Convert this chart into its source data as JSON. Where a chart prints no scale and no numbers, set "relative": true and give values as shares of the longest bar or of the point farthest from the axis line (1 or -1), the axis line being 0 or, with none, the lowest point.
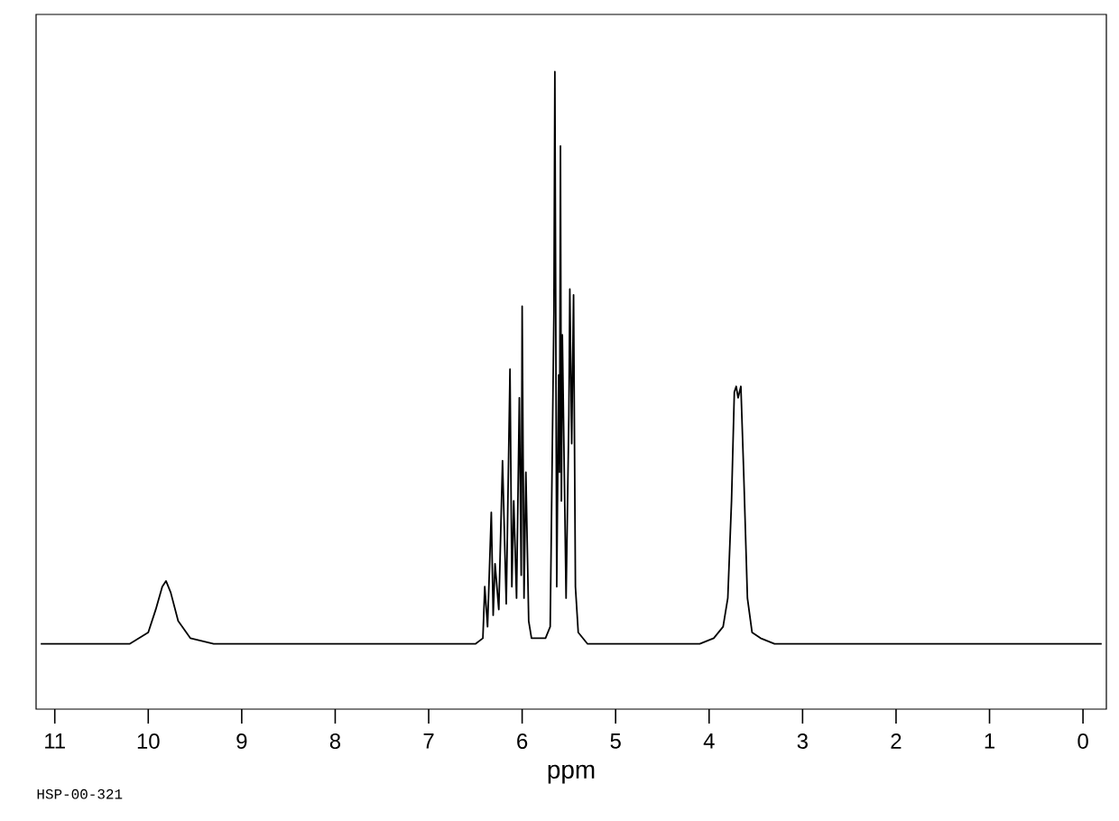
{
  "chart_data": {
    "type": "line",
    "relative": true,
    "xlabel": "ppm",
    "annotations": [
      "HSP-00-321"
    ],
    "tick_labels": "x",
    "xlim": [
      11.2,
      -0.25
    ],
    "xticks": [
      11,
      10,
      9,
      8,
      7,
      6,
      5,
      4,
      3,
      2,
      1,
      0
    ],
    "x": [
      11.15,
      10.2,
      10.0,
      9.92,
      9.85,
      9.81,
      9.76,
      9.68,
      9.55,
      9.3,
      6.5,
      6.42,
      6.4,
      6.37,
      6.33,
      6.31,
      6.29,
      6.25,
      6.21,
      6.17,
      6.13,
      6.11,
      6.09,
      6.06,
      6.03,
      6.01,
      6.0,
      5.98,
      5.96,
      5.93,
      5.9,
      5.75,
      5.7,
      5.66,
      5.65,
      5.63,
      5.61,
      5.6,
      5.59,
      5.58,
      5.57,
      5.53,
      5.5,
      5.49,
      5.47,
      5.45,
      5.43,
      5.4,
      5.3,
      4.1,
      3.95,
      3.85,
      3.8,
      3.76,
      3.73,
      3.71,
      3.69,
      3.66,
      3.63,
      3.59,
      3.54,
      3.45,
      3.3,
      -0.2
    ],
    "series": [
      {
        "color": "#000000",
        "values": [
          0,
          0,
          0.02,
          0.06,
          0.1,
          0.11,
          0.09,
          0.04,
          0.01,
          0,
          0,
          0.01,
          0.1,
          0.03,
          0.23,
          0.05,
          0.14,
          0.06,
          0.32,
          0.07,
          0.48,
          0.1,
          0.25,
          0.08,
          0.43,
          0.12,
          0.59,
          0.08,
          0.3,
          0.04,
          0.01,
          0.01,
          0.03,
          0.58,
          1.0,
          0.1,
          0.47,
          0.3,
          0.87,
          0.25,
          0.54,
          0.08,
          0.4,
          0.62,
          0.35,
          0.61,
          0.1,
          0.02,
          0,
          0,
          0.01,
          0.03,
          0.08,
          0.25,
          0.44,
          0.45,
          0.43,
          0.45,
          0.3,
          0.08,
          0.02,
          0.01,
          0,
          0
        ]
      }
    ]
  }
}
